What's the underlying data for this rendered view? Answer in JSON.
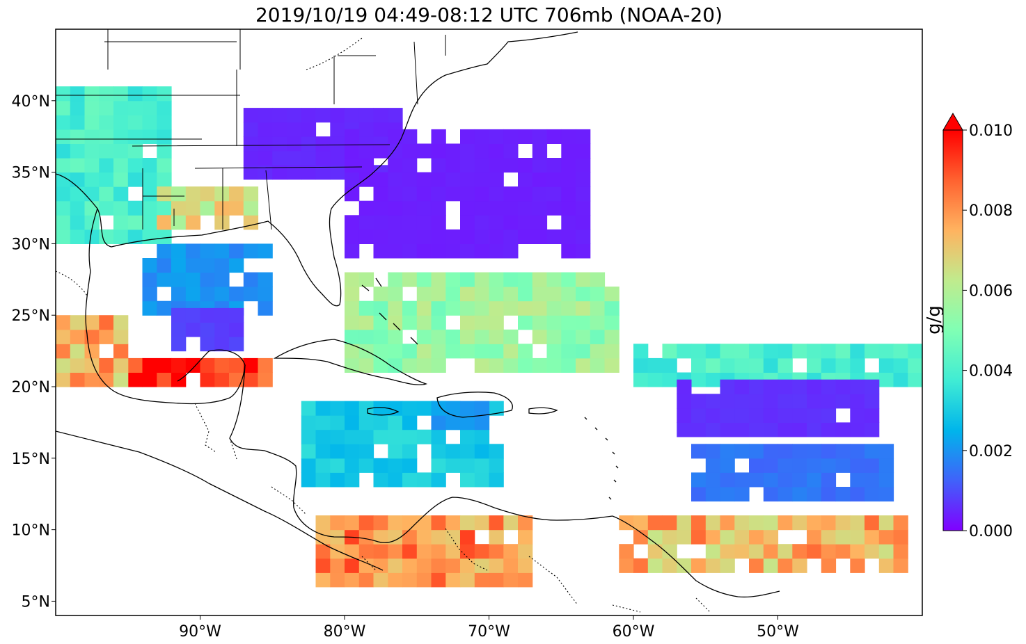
{
  "title": "2019/10/19 04:49-08:12 UTC 706mb (NOAA-20)",
  "map": {
    "lon_range": [
      -100,
      -40
    ],
    "lat_range": [
      4,
      45
    ],
    "lat_ticks": [
      {
        "value": 40,
        "label": "40°N"
      },
      {
        "value": 35,
        "label": "35°N"
      },
      {
        "value": 30,
        "label": "30°N"
      },
      {
        "value": 25,
        "label": "25°N"
      },
      {
        "value": 20,
        "label": "20°N"
      },
      {
        "value": 15,
        "label": "15°N"
      },
      {
        "value": 10,
        "label": "10°N"
      },
      {
        "value": 5,
        "label": "5°N"
      }
    ],
    "lon_ticks": [
      {
        "value": -90,
        "label": "90°W"
      },
      {
        "value": -80,
        "label": "80°W"
      },
      {
        "value": -70,
        "label": "70°W"
      },
      {
        "value": -60,
        "label": "60°W"
      },
      {
        "value": -50,
        "label": "50°W"
      }
    ],
    "field_regions": [
      {
        "lon": [
          -87,
          -76
        ],
        "lat": [
          34.5,
          39
        ],
        "value": 0.0005
      },
      {
        "lon": [
          -80,
          -63
        ],
        "lat": [
          29,
          38
        ],
        "value": 0.0004
      },
      {
        "lon": [
          -94,
          -85
        ],
        "lat": [
          25,
          30
        ],
        "value": 0.002
      },
      {
        "lon": [
          -92,
          -87
        ],
        "lat": [
          22.5,
          25
        ],
        "value": 0.0008
      },
      {
        "lon": [
          -95,
          -85
        ],
        "lat": [
          20,
          22
        ],
        "value": 0.0095
      },
      {
        "lon": [
          -100,
          -95
        ],
        "lat": [
          20,
          25
        ],
        "value": 0.0075
      },
      {
        "lon": [
          -100,
          -92
        ],
        "lat": [
          30,
          41
        ],
        "value": 0.004
      },
      {
        "lon": [
          -93,
          -86
        ],
        "lat": [
          31,
          34
        ],
        "value": 0.0065
      },
      {
        "lon": [
          -80,
          -61
        ],
        "lat": [
          21,
          28
        ],
        "value": 0.0055
      },
      {
        "lon": [
          -83,
          -69
        ],
        "lat": [
          13,
          19
        ],
        "value": 0.003
      },
      {
        "lon": [
          -82,
          -67
        ],
        "lat": [
          6,
          11
        ],
        "value": 0.008
      },
      {
        "lon": [
          -60,
          -40
        ],
        "lat": [
          20,
          23
        ],
        "value": 0.004
      },
      {
        "lon": [
          -57,
          -43
        ],
        "lat": [
          16.5,
          20.5
        ],
        "value": 0.0006
      },
      {
        "lon": [
          -56,
          -42
        ],
        "lat": [
          12,
          16
        ],
        "value": 0.0015
      },
      {
        "lon": [
          -61,
          -41
        ],
        "lat": [
          7,
          11
        ],
        "value": 0.0075
      },
      {
        "lon": [
          -74,
          -70
        ],
        "lat": [
          17,
          18.5
        ],
        "value": 0.002
      }
    ],
    "colors": {
      "land_line": "#000000",
      "border_line": "#000000"
    }
  },
  "colorbar": {
    "min": 0.0,
    "max": 0.01,
    "ticks": [
      "0.000",
      "0.002",
      "0.004",
      "0.006",
      "0.008",
      "0.010"
    ],
    "unit": "g/g",
    "colormap": "rainbow",
    "extend": "max"
  }
}
